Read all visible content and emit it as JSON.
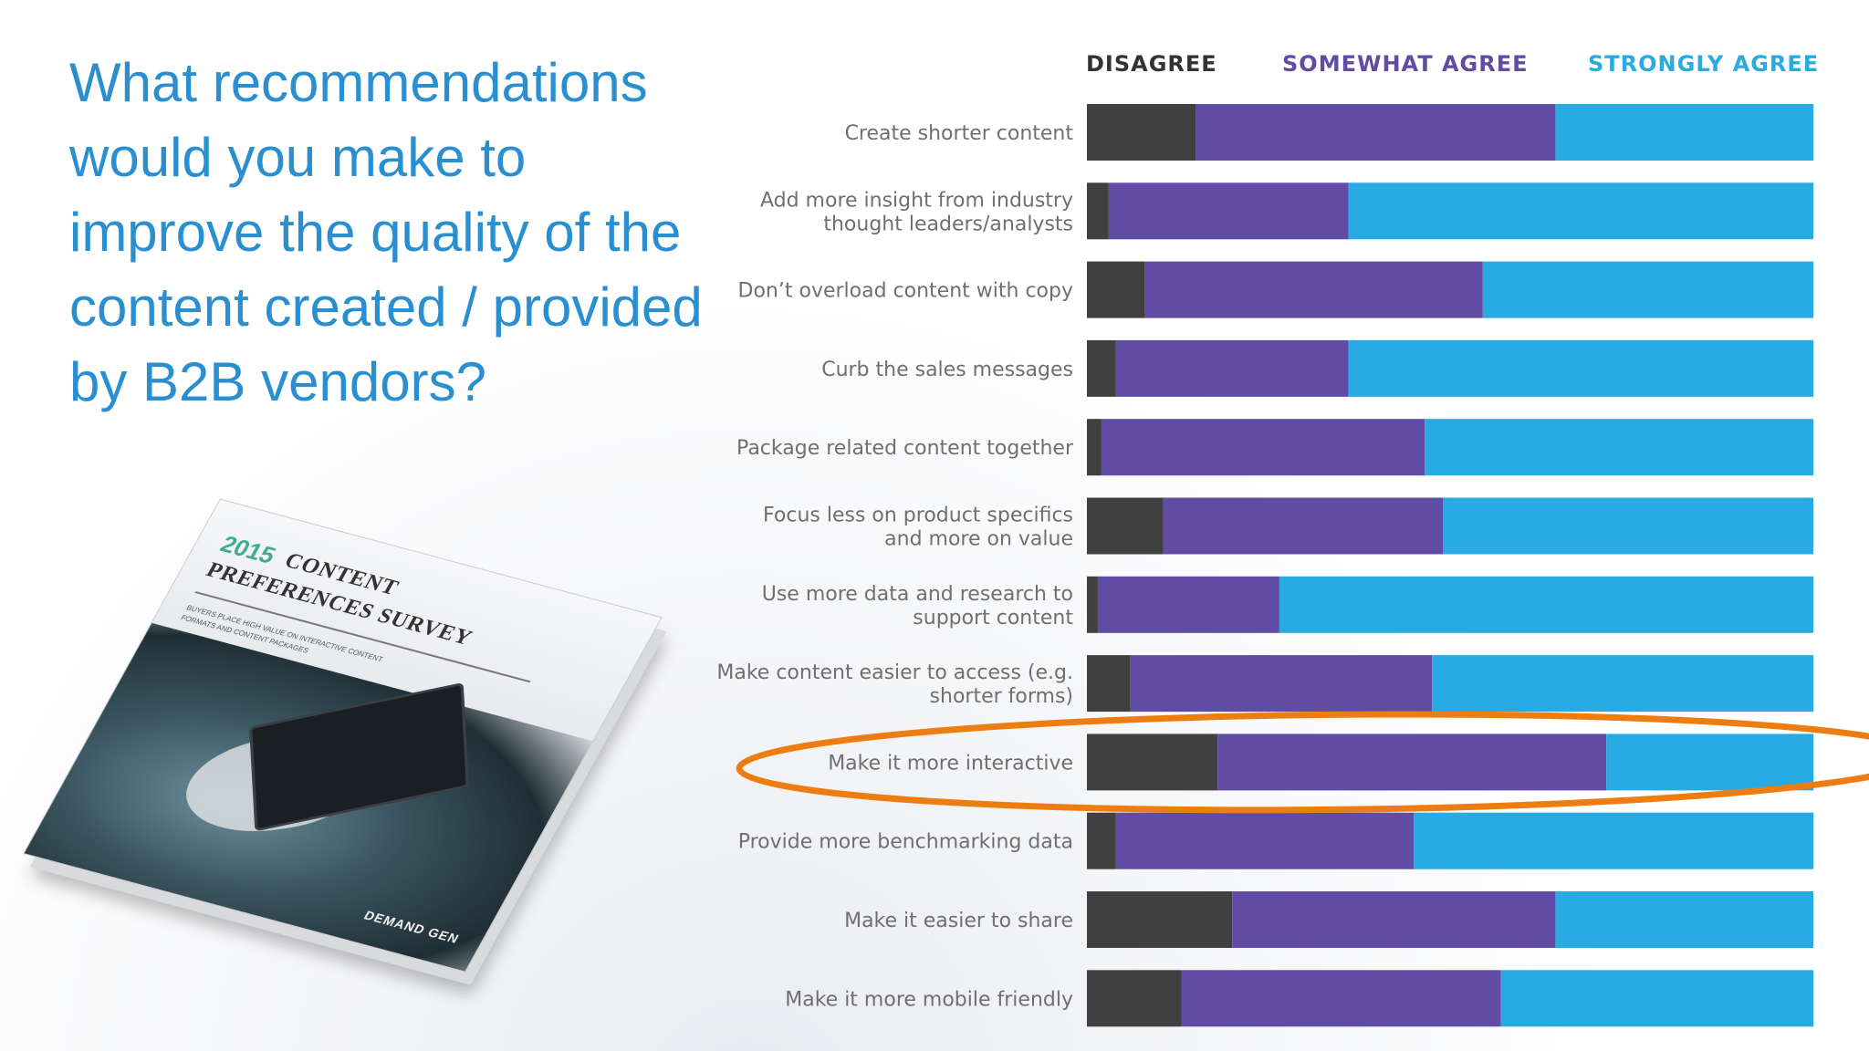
{
  "headline": "What recommendations would you make to improve the quality of the content created / provided by B2B vendors?",
  "book": {
    "cover_year": "2015",
    "cover_title_line1": "CONTENT",
    "cover_title_line2": "PREFERENCES SURVEY",
    "cover_subtitle": "Buyers place high value on interactive content formats and content packages",
    "logo": "DEMAND GEN"
  },
  "colors": {
    "disagree": "#404041",
    "somewhat_agree": "#614ca5",
    "strongly_agree": "#28abe2",
    "headline": "#2a8fd0",
    "highlight_ellipse": "#ee7d11"
  },
  "chart_data": {
    "type": "bar",
    "orientation": "horizontal",
    "stacked": true,
    "percent_stacked": true,
    "legend_position": "top",
    "grid": false,
    "xlim": [
      0,
      100
    ],
    "categories": [
      "Create shorter content",
      "Add more insight from industry\nthought leaders/analysts",
      "Don’t overload content with copy",
      "Curb the sales messages",
      "Package related content together",
      "Focus less on product specifics\nand more on value",
      "Use more data and research to\nsupport content",
      "Make content easier to access (e.g.\nshorter forms)",
      "Make it more interactive",
      "Provide more benchmarking data",
      "Make it easier to share",
      "Make it more mobile friendly"
    ],
    "series": [
      {
        "name": "DISAGREE",
        "color": "#404041",
        "values": [
          15,
          3,
          8,
          4,
          2,
          10.5,
          1.5,
          6,
          18,
          4,
          20,
          13
        ]
      },
      {
        "name": "SOMEWHAT AGREE",
        "color": "#614ca5",
        "values": [
          49.5,
          33,
          46.5,
          32,
          44.5,
          38.5,
          25,
          41.5,
          53.5,
          41,
          44.5,
          44
        ]
      },
      {
        "name": "STRONGLY AGREE",
        "color": "#28abe2",
        "values": [
          35.5,
          64,
          45.5,
          64,
          53.5,
          51,
          73.5,
          52.5,
          28.5,
          55,
          35.5,
          43
        ]
      }
    ],
    "highlighted_category": "Make it more interactive"
  }
}
